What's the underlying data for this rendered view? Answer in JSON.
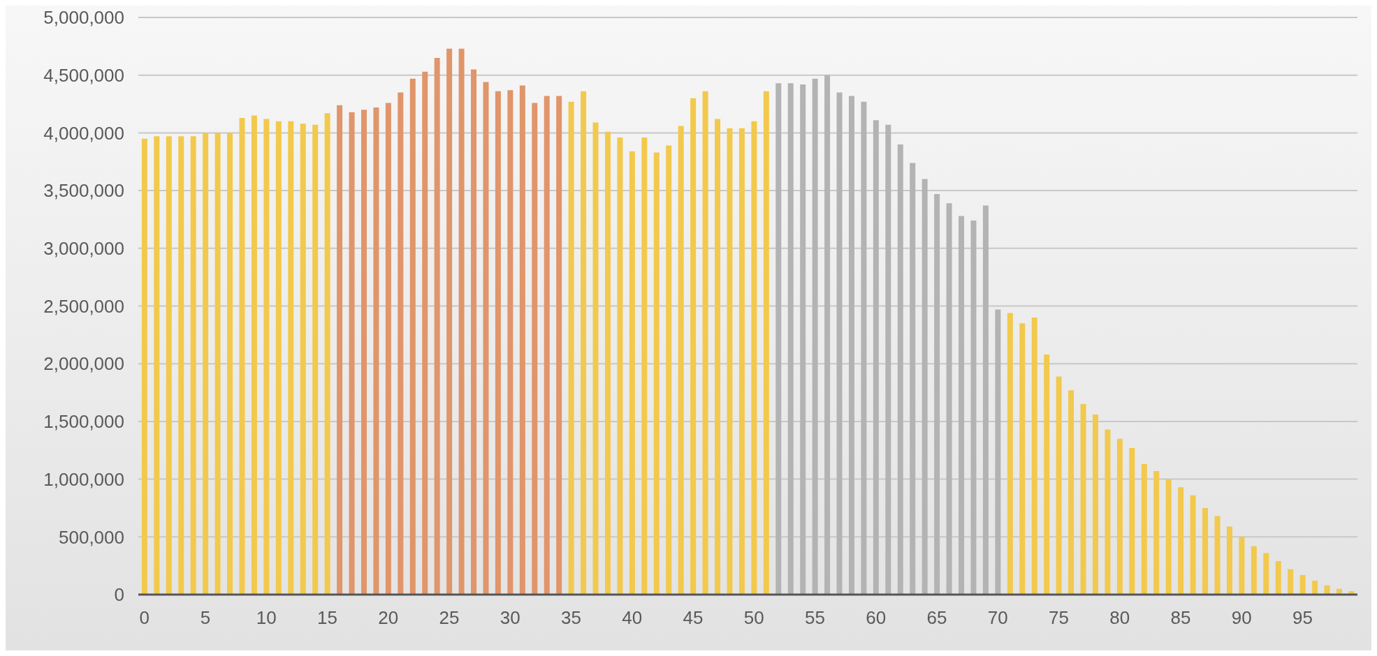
{
  "chart_data": {
    "type": "bar",
    "categories": [
      "0",
      null,
      null,
      null,
      null,
      "5",
      null,
      null,
      null,
      null,
      "10",
      null,
      null,
      null,
      null,
      "15",
      null,
      null,
      null,
      null,
      "20",
      null,
      null,
      null,
      null,
      "25",
      null,
      null,
      null,
      null,
      "30",
      null,
      null,
      null,
      null,
      "35",
      null,
      null,
      null,
      null,
      "40",
      null,
      null,
      null,
      null,
      "45",
      null,
      null,
      null,
      null,
      "50",
      null,
      null,
      null,
      null,
      "55",
      null,
      null,
      null,
      null,
      "60",
      null,
      null,
      null,
      null,
      "65",
      null,
      null,
      null,
      null,
      "70",
      null,
      null,
      null,
      null,
      "75",
      null,
      null,
      null,
      null,
      "80",
      null,
      null,
      null,
      null,
      "85",
      null,
      null,
      null,
      null,
      "90",
      null,
      null,
      null,
      null,
      "95",
      null,
      null,
      null,
      null
    ],
    "values": [
      3950000,
      3970000,
      3970000,
      3970000,
      3970000,
      4000000,
      4000000,
      4000000,
      4130000,
      4150000,
      4120000,
      4100000,
      4100000,
      4080000,
      4070000,
      4170000,
      4240000,
      4180000,
      4200000,
      4220000,
      4260000,
      4350000,
      4470000,
      4530000,
      4650000,
      4730000,
      4730000,
      4550000,
      4440000,
      4360000,
      4370000,
      4410000,
      4260000,
      4320000,
      4320000,
      4270000,
      4360000,
      4090000,
      4010000,
      3960000,
      3840000,
      3960000,
      3830000,
      3890000,
      4060000,
      4300000,
      4360000,
      4120000,
      4040000,
      4040000,
      4100000,
      4360000,
      4430000,
      4430000,
      4420000,
      4470000,
      4500000,
      4350000,
      4320000,
      4270000,
      4110000,
      4070000,
      3900000,
      3740000,
      3600000,
      3470000,
      3390000,
      3280000,
      3240000,
      3370000,
      2470000,
      2440000,
      2350000,
      2400000,
      2080000,
      1890000,
      1770000,
      1650000,
      1560000,
      1430000,
      1350000,
      1270000,
      1130000,
      1070000,
      1000000,
      930000,
      860000,
      750000,
      680000,
      590000,
      500000,
      420000,
      360000,
      290000,
      220000,
      170000,
      120000,
      80000,
      50000,
      30000
    ],
    "colors": [
      "#f2c94c",
      "#f2c94c",
      "#f2c94c",
      "#f2c94c",
      "#f2c94c",
      "#f2c94c",
      "#f2c94c",
      "#f2c94c",
      "#f2c94c",
      "#f2c94c",
      "#f2c94c",
      "#f2c94c",
      "#f2c94c",
      "#f2c94c",
      "#f2c94c",
      "#f2c94c",
      "#e0956a",
      "#e0956a",
      "#e0956a",
      "#e0956a",
      "#e0956a",
      "#e0956a",
      "#e0956a",
      "#e0956a",
      "#e0956a",
      "#e0956a",
      "#e0956a",
      "#e0956a",
      "#e0956a",
      "#e0956a",
      "#e0956a",
      "#e0956a",
      "#e0956a",
      "#e0956a",
      "#e0956a",
      "#f2c94c",
      "#f2c94c",
      "#f2c94c",
      "#f2c94c",
      "#f2c94c",
      "#f2c94c",
      "#f2c94c",
      "#f2c94c",
      "#f2c94c",
      "#f2c94c",
      "#f2c94c",
      "#f2c94c",
      "#f2c94c",
      "#f2c94c",
      "#f2c94c",
      "#f2c94c",
      "#f2c94c",
      "#b3b3b3",
      "#b3b3b3",
      "#b3b3b3",
      "#b3b3b3",
      "#b3b3b3",
      "#b3b3b3",
      "#b3b3b3",
      "#b3b3b3",
      "#b3b3b3",
      "#b3b3b3",
      "#b3b3b3",
      "#b3b3b3",
      "#b3b3b3",
      "#b3b3b3",
      "#b3b3b3",
      "#b3b3b3",
      "#b3b3b3",
      "#b3b3b3",
      "#b3b3b3",
      "#f2c94c",
      "#f2c94c",
      "#f2c94c",
      "#f2c94c",
      "#f2c94c",
      "#f2c94c",
      "#f2c94c",
      "#f2c94c",
      "#f2c94c",
      "#f2c94c",
      "#f2c94c",
      "#f2c94c",
      "#f2c94c",
      "#f2c94c",
      "#f2c94c",
      "#f2c94c",
      "#f2c94c",
      "#f2c94c",
      "#f2c94c",
      "#f2c94c",
      "#f2c94c",
      "#f2c94c",
      "#f2c94c",
      "#f2c94c",
      "#f2c94c",
      "#f2c94c",
      "#f2c94c",
      "#f2c94c",
      "#f2c94c"
    ],
    "ylim": [
      0,
      5000000
    ],
    "yticks": [
      {
        "value": 0,
        "label": "0"
      },
      {
        "value": 500000,
        "label": "500,000"
      },
      {
        "value": 1000000,
        "label": "1,000,000"
      },
      {
        "value": 1500000,
        "label": "1,500,000"
      },
      {
        "value": 2000000,
        "label": "2,000,000"
      },
      {
        "value": 2500000,
        "label": "2,500,000"
      },
      {
        "value": 3000000,
        "label": "3,000,000"
      },
      {
        "value": 3500000,
        "label": "3,500,000"
      },
      {
        "value": 4000000,
        "label": "4,000,000"
      },
      {
        "value": 4500000,
        "label": "4,500,000"
      },
      {
        "value": 5000000,
        "label": "5,000,000"
      }
    ],
    "grid": "y"
  }
}
